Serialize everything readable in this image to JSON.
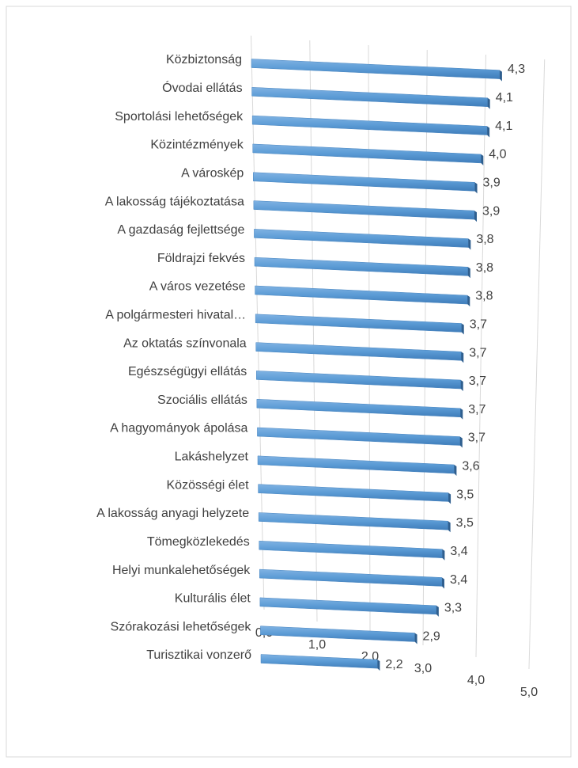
{
  "chart_data": {
    "type": "bar",
    "orientation": "horizontal",
    "categories": [
      "Közbiztonság",
      "Óvodai ellátás",
      "Sportolási lehetőségek",
      "Közintézmények",
      "A városkép",
      "A lakosság tájékoztatása",
      "A gazdaság fejlettsége",
      "Földrajzi fekvés",
      "A város vezetése",
      "A polgármesteri hivatal…",
      "Az oktatás színvonala",
      "Egészségügyi ellátás",
      "Szociális ellátás",
      "A hagyományok ápolása",
      "Lakáshelyzet",
      "Közösségi élet",
      "A lakosság anyagi helyzete",
      "Tömegközlekedés",
      "Helyi munkalehetőségek",
      "Kulturális élet",
      "Szórakozási lehetőségek",
      "Turisztikai vonzerő"
    ],
    "values": [
      4.3,
      4.1,
      4.1,
      4.0,
      3.9,
      3.9,
      3.8,
      3.8,
      3.8,
      3.7,
      3.7,
      3.7,
      3.7,
      3.7,
      3.6,
      3.5,
      3.5,
      3.4,
      3.4,
      3.3,
      2.9,
      2.2
    ],
    "value_labels": [
      "4,3",
      "4,1",
      "4,1",
      "4,0",
      "3,9",
      "3,9",
      "3,8",
      "3,8",
      "3,8",
      "3,7",
      "3,7",
      "3,7",
      "3,7",
      "3,7",
      "3,6",
      "3,5",
      "3,5",
      "3,4",
      "3,4",
      "3,3",
      "2,9",
      "2,2"
    ],
    "color": "#5b9bd5",
    "xlim": [
      0,
      5
    ],
    "xticks": [
      {
        "value": 0,
        "label": "0,0"
      },
      {
        "value": 1,
        "label": "1,0"
      },
      {
        "value": 2,
        "label": "2,0"
      },
      {
        "value": 3,
        "label": "3,0"
      },
      {
        "value": 4,
        "label": "4,0"
      },
      {
        "value": 5,
        "label": "5,0"
      }
    ],
    "grid": true
  }
}
